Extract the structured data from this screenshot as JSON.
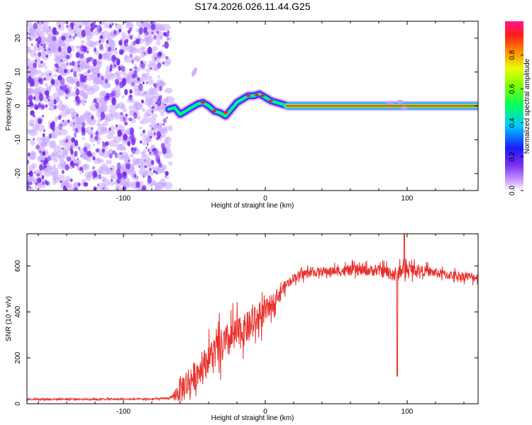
{
  "figure_title": "S174.2026.026.11.44.G25",
  "colors": {
    "snr_line": "#e8302a",
    "trace_ridge": "#e8303a",
    "noise_dot": "#7a2ff0",
    "noise_halo": "#c9a8ff",
    "axis": "#000000"
  },
  "colorbar": {
    "label": "Normalized spectral amplitude",
    "ticks": [
      0.0,
      0.2,
      0.4,
      0.6,
      0.8
    ],
    "tick_labels": [
      "0.0",
      "0.2",
      "0.4",
      "0.6",
      "0.8"
    ],
    "range": [
      0,
      1
    ],
    "stops": [
      {
        "v": 0.0,
        "color": "#ffffff"
      },
      {
        "v": 0.06,
        "color": "#c89cff"
      },
      {
        "v": 0.15,
        "color": "#7a2ff0"
      },
      {
        "v": 0.25,
        "color": "#1a1aff"
      },
      {
        "v": 0.38,
        "color": "#00c8ff"
      },
      {
        "v": 0.5,
        "color": "#00ff60"
      },
      {
        "v": 0.62,
        "color": "#7fff00"
      },
      {
        "v": 0.72,
        "color": "#e8ff00"
      },
      {
        "v": 0.82,
        "color": "#ff8c00"
      },
      {
        "v": 0.92,
        "color": "#ff1a1a"
      },
      {
        "v": 1.0,
        "color": "#ff1a8c"
      }
    ]
  },
  "chart_data": [
    {
      "type": "heatmap",
      "title": "S174.2026.026.11.44.G25",
      "xlabel": "Height of straight line (km)",
      "ylabel": "Frequency (Hz)",
      "xlim": [
        -168,
        150
      ],
      "ylim": [
        -25,
        25
      ],
      "xticks": [
        -100,
        0,
        100
      ],
      "xtick_labels": [
        "-100",
        "0",
        "100"
      ],
      "yticks": [
        -20,
        -10,
        0,
        10,
        20
      ],
      "ytick_labels": [
        "-20",
        "-10",
        "0",
        "10",
        "20"
      ],
      "noise_region_x": [
        -168,
        -68
      ],
      "trace": {
        "x": [
          -68,
          -64,
          -60,
          -56,
          -52,
          -48,
          -44,
          -40,
          -36,
          -32,
          -28,
          -24,
          -20,
          -16,
          -12,
          -8,
          -4,
          0,
          4,
          8,
          12,
          16,
          40,
          80,
          100,
          120,
          150
        ],
        "y": [
          -1,
          -0.5,
          -2.5,
          -1.5,
          -0.5,
          0.5,
          1,
          0,
          -1.5,
          -2,
          -3,
          -1,
          1,
          2,
          3,
          3,
          3.5,
          2.5,
          1.5,
          1,
          0.5,
          0,
          0,
          0,
          0,
          0,
          0
        ]
      },
      "ridge_segment": {
        "x_start": 15,
        "x_end": 150,
        "y": 0
      }
    },
    {
      "type": "line",
      "xlabel": "Height of straight line (km)",
      "ylabel": "SNR (10 * v/v)",
      "xlim": [
        -168,
        150
      ],
      "ylim": [
        0,
        740
      ],
      "xticks": [
        -100,
        0,
        100
      ],
      "xtick_labels": [
        "-100",
        "0",
        "100"
      ],
      "yticks": [
        0,
        200,
        400,
        600
      ],
      "ytick_labels": [
        "0",
        "200",
        "400",
        "600"
      ],
      "envelope": {
        "x": [
          -168,
          -120,
          -80,
          -66,
          -60,
          -55,
          -50,
          -45,
          -40,
          -35,
          -30,
          -25,
          -20,
          -15,
          -10,
          -5,
          0,
          5,
          10,
          15,
          20,
          25,
          30,
          40,
          60,
          80,
          88,
          92,
          95,
          100,
          110,
          130,
          150
        ],
        "base": [
          20,
          20,
          20,
          25,
          60,
          90,
          120,
          160,
          200,
          230,
          250,
          280,
          300,
          320,
          340,
          370,
          400,
          440,
          480,
          520,
          550,
          560,
          570,
          575,
          580,
          580,
          570,
          560,
          580,
          585,
          580,
          560,
          550
        ],
        "noise": [
          8,
          8,
          8,
          10,
          120,
          140,
          130,
          120,
          130,
          150,
          160,
          160,
          150,
          140,
          140,
          120,
          110,
          80,
          60,
          45,
          40,
          40,
          40,
          40,
          45,
          50,
          60,
          80,
          70,
          60,
          45,
          40,
          40
        ]
      },
      "events": [
        {
          "x": 93,
          "y": 120
        },
        {
          "x": 98,
          "y": 740
        }
      ],
      "series": [
        {
          "name": "SNR",
          "color": "#e8302a"
        }
      ]
    }
  ]
}
